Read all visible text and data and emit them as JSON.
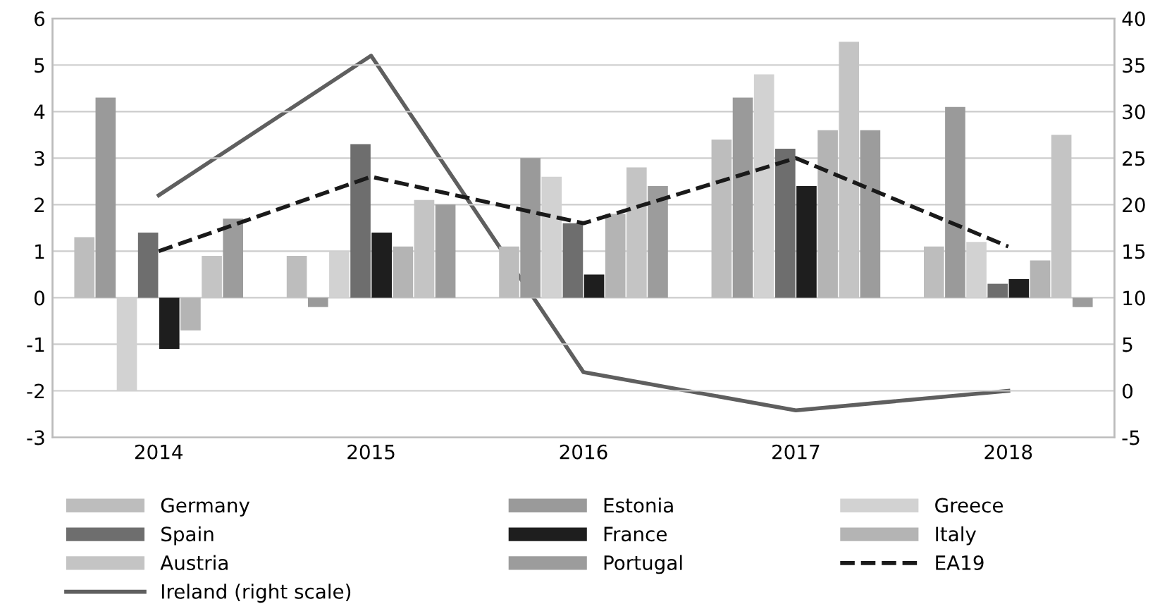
{
  "chart_data": {
    "type": "bar",
    "categories": [
      "2014",
      "2015",
      "2016",
      "2017",
      "2018"
    ],
    "series": [
      {
        "name": "Germany",
        "color": "#bdbdbd",
        "values": [
          1.3,
          0.9,
          1.1,
          3.4,
          1.1
        ]
      },
      {
        "name": "Estonia",
        "color": "#9a9a9a",
        "values": [
          4.3,
          -0.2,
          3.0,
          4.3,
          4.1
        ]
      },
      {
        "name": "Greece",
        "color": "#d2d2d2",
        "values": [
          -2.0,
          1.0,
          2.6,
          4.8,
          1.2
        ]
      },
      {
        "name": "Spain",
        "color": "#6e6e6e",
        "values": [
          1.4,
          3.3,
          1.6,
          3.2,
          0.3
        ]
      },
      {
        "name": "France",
        "color": "#1e1e1e",
        "values": [
          -1.1,
          1.4,
          0.5,
          2.4,
          0.4
        ]
      },
      {
        "name": "Italy",
        "color": "#b4b4b4",
        "values": [
          -0.7,
          1.1,
          1.8,
          3.6,
          0.8
        ]
      },
      {
        "name": "Austria",
        "color": "#c4c4c4",
        "values": [
          0.9,
          2.1,
          2.8,
          5.5,
          3.5
        ]
      },
      {
        "name": "Portugal",
        "color": "#9c9c9c",
        "values": [
          1.7,
          2.0,
          2.4,
          3.6,
          -0.2
        ]
      },
      {
        "name": "EA19",
        "type": "line",
        "color": "#1a1a1a",
        "line_style": "dashed",
        "values": [
          1.0,
          2.6,
          1.6,
          3.0,
          1.1
        ]
      },
      {
        "name": "Ireland (right scale)",
        "type": "line",
        "axis": "y2",
        "color": "#5f5f5f",
        "line_style": "solid",
        "values": [
          21,
          36,
          2,
          -2.1,
          0
        ]
      }
    ],
    "ylim": [
      -3,
      6
    ],
    "yticks": [
      -3,
      -2,
      -1,
      0,
      1,
      2,
      3,
      4,
      5,
      6
    ],
    "y2lim": [
      -5,
      40
    ],
    "y2ticks": [
      -5,
      0,
      5,
      10,
      15,
      20,
      25,
      30,
      35,
      40
    ],
    "grid": "y",
    "legend": "bottom"
  }
}
